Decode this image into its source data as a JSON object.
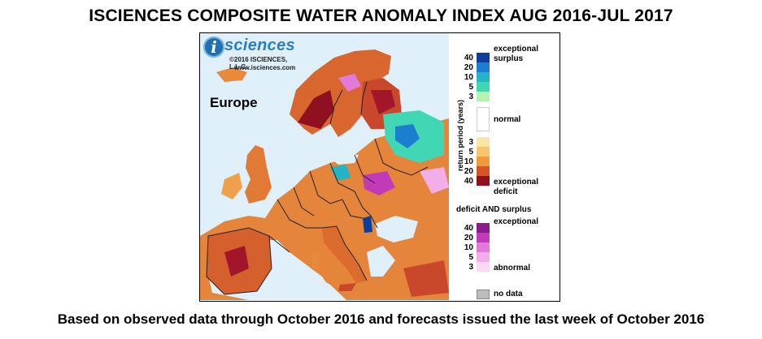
{
  "title": "ISCIENCES COMPOSITE WATER ANOMALY INDEX AUG 2016-JUL 2017",
  "caption": "Based on observed data through October 2016 and forecasts issued the last week of October 2016",
  "logo": {
    "badge": "i",
    "word": "sciences",
    "copyright": "©2016 ISCIENCES, L.L.C.",
    "url": "www.isciences.com"
  },
  "map": {
    "region_label": "Europe"
  },
  "legend": {
    "axis_label": "return period (years)",
    "surplus_label_1": "exceptional",
    "surplus_label_2": "surplus",
    "normal_label": "normal",
    "deficit_label_1": "exceptional",
    "deficit_label_2": "deficit",
    "both_header": "deficit AND surplus",
    "both_top_label": "exceptional",
    "both_bottom_label": "abnormal",
    "nodata_label": "no data",
    "surplus_scale": [
      {
        "value": "40",
        "color": "#0b3f9c"
      },
      {
        "value": "20",
        "color": "#1b7fcf"
      },
      {
        "value": "10",
        "color": "#25b3c6"
      },
      {
        "value": "5",
        "color": "#41d7b4"
      },
      {
        "value": "3",
        "color": "#b9f2b0"
      }
    ],
    "normal_color": "#ffffff",
    "deficit_scale": [
      {
        "value": "3",
        "color": "#fbe6a6"
      },
      {
        "value": "5",
        "color": "#f8c56c"
      },
      {
        "value": "10",
        "color": "#ef9a3c"
      },
      {
        "value": "20",
        "color": "#d7542a"
      },
      {
        "value": "40",
        "color": "#8f1020"
      }
    ],
    "both_scale": [
      {
        "value": "40",
        "color": "#8b1a8e"
      },
      {
        "value": "20",
        "color": "#c23ab8"
      },
      {
        "value": "10",
        "color": "#e27ad7"
      },
      {
        "value": "5",
        "color": "#f2aee8"
      },
      {
        "value": "3",
        "color": "#fbd9f5"
      }
    ],
    "nodata_color": "#bdbdbd"
  },
  "colors": {
    "ocean": "#dff0fb",
    "land_base": "#e5843b",
    "border": "#222222"
  }
}
